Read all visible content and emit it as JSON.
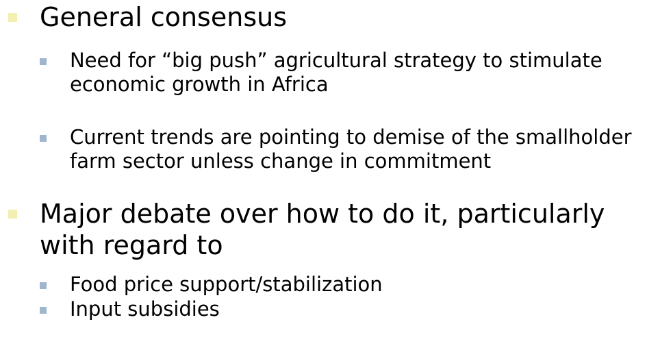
{
  "bullets": [
    {
      "text": "General consensus",
      "children": [
        "Need for “big push” agricultural strategy to stimulate economic growth in Africa",
        "Current trends are pointing to demise of the smallholder farm sector unless change in commitment"
      ]
    },
    {
      "text": "Major debate over how to do it, particularly with regard to",
      "children": [
        "Food price support/stabilization",
        "Input subsidies"
      ]
    }
  ]
}
